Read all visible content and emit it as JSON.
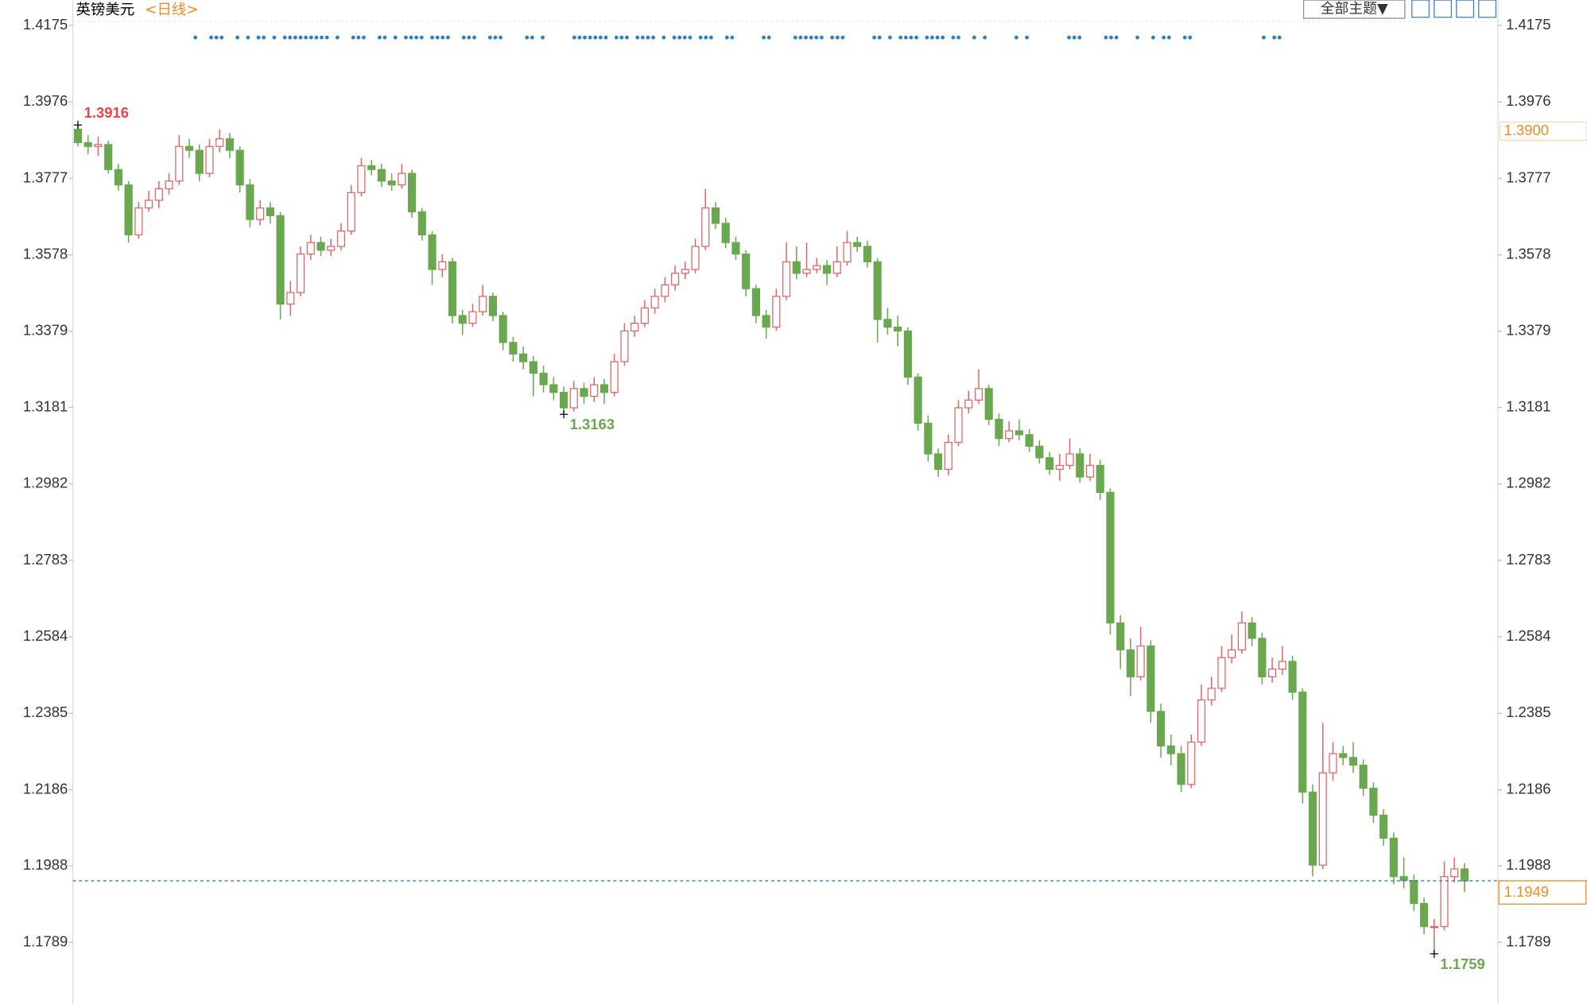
{
  "chart_data": {
    "type": "candlestick",
    "title": "英镑美元",
    "period": "<日线>",
    "toolbar": {
      "theme_button": "全部主题▼"
    },
    "up_color": "#e06666",
    "down_color": "#6aa84f",
    "ylim": [
      1.1634,
      1.4241
    ],
    "yticks": [
      1.4175,
      1.3976,
      1.3777,
      1.3578,
      1.3379,
      1.3181,
      1.2982,
      1.2783,
      1.2584,
      1.2385,
      1.2186,
      1.1988,
      1.1789
    ],
    "high_marker": 1.3916,
    "low_markers": [
      1.3163,
      1.1759
    ],
    "reference_price": {
      "value": 1.39,
      "label": "1.3900"
    },
    "last_price": 1.1949,
    "candles": [
      [
        1.3905,
        1.3916,
        1.386,
        1.387
      ],
      [
        1.387,
        1.389,
        1.384,
        1.386
      ],
      [
        1.386,
        1.3885,
        1.3835,
        1.3865
      ],
      [
        1.3865,
        1.3875,
        1.379,
        1.38
      ],
      [
        1.38,
        1.3815,
        1.3745,
        1.376
      ],
      [
        1.376,
        1.377,
        1.361,
        1.363
      ],
      [
        1.363,
        1.3715,
        1.362,
        1.37
      ],
      [
        1.37,
        1.3745,
        1.369,
        1.372
      ],
      [
        1.372,
        1.377,
        1.37,
        1.375
      ],
      [
        1.375,
        1.379,
        1.3735,
        1.377
      ],
      [
        1.377,
        1.389,
        1.376,
        1.386
      ],
      [
        1.386,
        1.388,
        1.383,
        1.385
      ],
      [
        1.385,
        1.3865,
        1.377,
        1.379
      ],
      [
        1.379,
        1.388,
        1.378,
        1.386
      ],
      [
        1.386,
        1.3905,
        1.3845,
        1.388
      ],
      [
        1.388,
        1.3895,
        1.383,
        1.385
      ],
      [
        1.385,
        1.386,
        1.374,
        1.376
      ],
      [
        1.376,
        1.3775,
        1.365,
        1.367
      ],
      [
        1.367,
        1.372,
        1.3655,
        1.37
      ],
      [
        1.37,
        1.3715,
        1.366,
        1.368
      ],
      [
        1.368,
        1.369,
        1.341,
        1.345
      ],
      [
        1.345,
        1.351,
        1.342,
        1.348
      ],
      [
        1.348,
        1.36,
        1.347,
        1.358
      ],
      [
        1.358,
        1.363,
        1.3565,
        1.361
      ],
      [
        1.361,
        1.3625,
        1.3575,
        1.359
      ],
      [
        1.359,
        1.362,
        1.3575,
        1.36
      ],
      [
        1.36,
        1.366,
        1.359,
        1.364
      ],
      [
        1.364,
        1.376,
        1.363,
        1.374
      ],
      [
        1.374,
        1.383,
        1.373,
        1.381
      ],
      [
        1.381,
        1.3825,
        1.3785,
        1.38
      ],
      [
        1.38,
        1.3815,
        1.3755,
        1.377
      ],
      [
        1.377,
        1.379,
        1.3745,
        1.376
      ],
      [
        1.376,
        1.3815,
        1.375,
        1.379
      ],
      [
        1.379,
        1.38,
        1.3675,
        1.369
      ],
      [
        1.369,
        1.37,
        1.3615,
        1.363
      ],
      [
        1.363,
        1.364,
        1.35,
        1.354
      ],
      [
        1.354,
        1.358,
        1.352,
        1.356
      ],
      [
        1.356,
        1.357,
        1.34,
        1.342
      ],
      [
        1.342,
        1.3435,
        1.337,
        1.34
      ],
      [
        1.34,
        1.345,
        1.339,
        1.343
      ],
      [
        1.343,
        1.35,
        1.342,
        1.347
      ],
      [
        1.347,
        1.348,
        1.3405,
        1.342
      ],
      [
        1.342,
        1.343,
        1.333,
        1.335
      ],
      [
        1.335,
        1.3365,
        1.33,
        1.332
      ],
      [
        1.332,
        1.334,
        1.328,
        1.33
      ],
      [
        1.33,
        1.3315,
        1.321,
        1.327
      ],
      [
        1.327,
        1.329,
        1.322,
        1.324
      ],
      [
        1.324,
        1.326,
        1.32,
        1.322
      ],
      [
        1.322,
        1.3235,
        1.3163,
        1.318
      ],
      [
        1.318,
        1.325,
        1.317,
        1.323
      ],
      [
        1.323,
        1.3245,
        1.319,
        1.321
      ],
      [
        1.321,
        1.326,
        1.3195,
        1.324
      ],
      [
        1.324,
        1.3255,
        1.319,
        1.322
      ],
      [
        1.322,
        1.332,
        1.321,
        1.33
      ],
      [
        1.33,
        1.34,
        1.329,
        1.338
      ],
      [
        1.338,
        1.342,
        1.3365,
        1.34
      ],
      [
        1.34,
        1.346,
        1.339,
        1.344
      ],
      [
        1.344,
        1.349,
        1.3425,
        1.347
      ],
      [
        1.347,
        1.352,
        1.3455,
        1.35
      ],
      [
        1.35,
        1.355,
        1.3485,
        1.353
      ],
      [
        1.353,
        1.356,
        1.3515,
        1.354
      ],
      [
        1.354,
        1.362,
        1.353,
        1.36
      ],
      [
        1.36,
        1.375,
        1.359,
        1.37
      ],
      [
        1.37,
        1.3715,
        1.3645,
        1.366
      ],
      [
        1.366,
        1.3675,
        1.3595,
        1.361
      ],
      [
        1.361,
        1.3625,
        1.3565,
        1.358
      ],
      [
        1.358,
        1.359,
        1.347,
        1.349
      ],
      [
        1.349,
        1.35,
        1.34,
        1.342
      ],
      [
        1.342,
        1.3435,
        1.336,
        1.339
      ],
      [
        1.339,
        1.349,
        1.338,
        1.347
      ],
      [
        1.347,
        1.361,
        1.346,
        1.356
      ],
      [
        1.356,
        1.36,
        1.3515,
        1.353
      ],
      [
        1.353,
        1.361,
        1.352,
        1.354
      ],
      [
        1.354,
        1.357,
        1.353,
        1.355
      ],
      [
        1.355,
        1.3565,
        1.35,
        1.353
      ],
      [
        1.353,
        1.36,
        1.352,
        1.356
      ],
      [
        1.356,
        1.364,
        1.355,
        1.361
      ],
      [
        1.361,
        1.3625,
        1.3585,
        1.36
      ],
      [
        1.36,
        1.3615,
        1.3545,
        1.356
      ],
      [
        1.356,
        1.357,
        1.335,
        1.341
      ],
      [
        1.341,
        1.344,
        1.337,
        1.339
      ],
      [
        1.339,
        1.342,
        1.334,
        1.338
      ],
      [
        1.338,
        1.339,
        1.324,
        1.326
      ],
      [
        1.326,
        1.327,
        1.312,
        1.314
      ],
      [
        1.314,
        1.316,
        1.304,
        1.306
      ],
      [
        1.306,
        1.3075,
        1.3,
        1.302
      ],
      [
        1.302,
        1.311,
        1.3005,
        1.309
      ],
      [
        1.309,
        1.32,
        1.308,
        1.318
      ],
      [
        1.318,
        1.3225,
        1.3165,
        1.32
      ],
      [
        1.32,
        1.328,
        1.319,
        1.323
      ],
      [
        1.323,
        1.324,
        1.3135,
        1.315
      ],
      [
        1.315,
        1.3165,
        1.308,
        1.31
      ],
      [
        1.31,
        1.3145,
        1.309,
        1.312
      ],
      [
        1.312,
        1.315,
        1.3095,
        1.311
      ],
      [
        1.311,
        1.3125,
        1.3065,
        1.308
      ],
      [
        1.308,
        1.3095,
        1.3035,
        1.305
      ],
      [
        1.305,
        1.3065,
        1.3005,
        1.302
      ],
      [
        1.302,
        1.306,
        1.299,
        1.303
      ],
      [
        1.303,
        1.31,
        1.302,
        1.306
      ],
      [
        1.306,
        1.3075,
        1.2985,
        1.3
      ],
      [
        1.3,
        1.306,
        1.299,
        1.303
      ],
      [
        1.303,
        1.3045,
        1.294,
        1.296
      ],
      [
        1.296,
        1.297,
        1.259,
        1.262
      ],
      [
        1.262,
        1.264,
        1.25,
        1.255
      ],
      [
        1.255,
        1.258,
        1.243,
        1.248
      ],
      [
        1.248,
        1.261,
        1.247,
        1.256
      ],
      [
        1.256,
        1.2575,
        1.236,
        1.239
      ],
      [
        1.239,
        1.241,
        1.227,
        1.23
      ],
      [
        1.23,
        1.233,
        1.225,
        1.228
      ],
      [
        1.228,
        1.23,
        1.218,
        1.22
      ],
      [
        1.22,
        1.233,
        1.219,
        1.231
      ],
      [
        1.231,
        1.246,
        1.23,
        1.242
      ],
      [
        1.242,
        1.248,
        1.2405,
        1.245
      ],
      [
        1.245,
        1.256,
        1.244,
        1.253
      ],
      [
        1.253,
        1.259,
        1.2515,
        1.255
      ],
      [
        1.255,
        1.265,
        1.254,
        1.262
      ],
      [
        1.262,
        1.2635,
        1.256,
        1.258
      ],
      [
        1.258,
        1.2595,
        1.246,
        1.248
      ],
      [
        1.248,
        1.253,
        1.2465,
        1.25
      ],
      [
        1.25,
        1.256,
        1.2485,
        1.252
      ],
      [
        1.252,
        1.2535,
        1.242,
        1.244
      ],
      [
        1.244,
        1.245,
        1.215,
        1.218
      ],
      [
        1.218,
        1.22,
        1.196,
        1.199
      ],
      [
        1.199,
        1.236,
        1.198,
        1.223
      ],
      [
        1.223,
        1.231,
        1.221,
        1.228
      ],
      [
        1.228,
        1.23,
        1.225,
        1.227
      ],
      [
        1.227,
        1.231,
        1.223,
        1.225
      ],
      [
        1.225,
        1.2265,
        1.217,
        1.219
      ],
      [
        1.219,
        1.2205,
        1.21,
        1.212
      ],
      [
        1.212,
        1.2135,
        1.204,
        1.206
      ],
      [
        1.206,
        1.2075,
        1.194,
        1.196
      ],
      [
        1.196,
        1.201,
        1.193,
        1.195
      ],
      [
        1.195,
        1.1965,
        1.187,
        1.189
      ],
      [
        1.189,
        1.1905,
        1.181,
        1.183
      ],
      [
        1.183,
        1.185,
        1.1759,
        1.183
      ],
      [
        1.183,
        1.2,
        1.182,
        1.196
      ],
      [
        1.196,
        1.201,
        1.1945,
        1.198
      ],
      [
        1.198,
        1.1995,
        1.192,
        1.1949
      ]
    ]
  }
}
